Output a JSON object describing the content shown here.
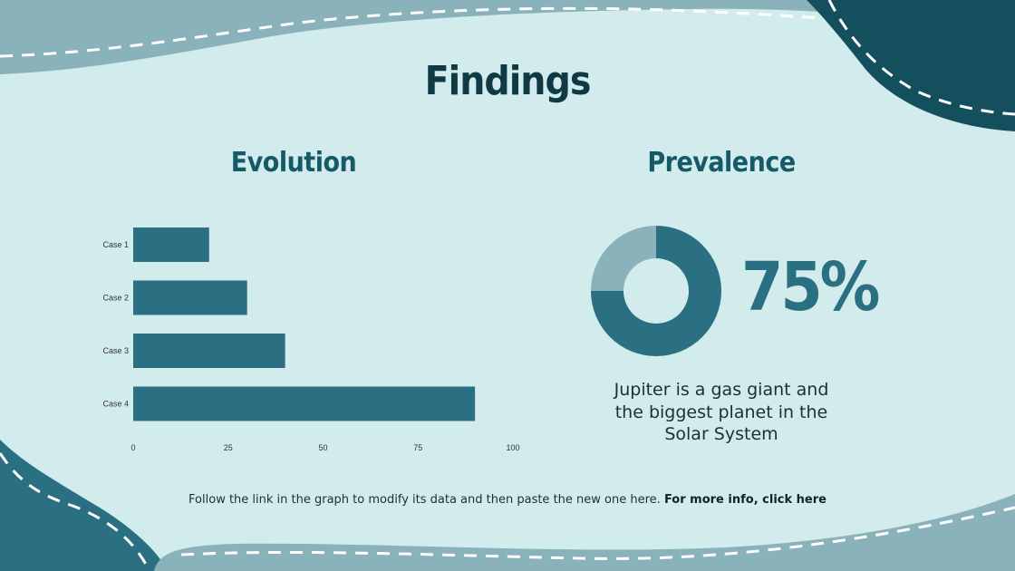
{
  "title": "Findings",
  "evolution": {
    "title": "Evolution"
  },
  "prevalence": {
    "title": "Prevalence",
    "percent_label": "75%",
    "description": "Jupiter is a gas giant and the biggest planet in the Solar System"
  },
  "footer": {
    "text": "Follow the link in the graph to modify its data and then paste the new one here.",
    "link_label": "For more info, click here"
  },
  "colors": {
    "background": "#d2eced",
    "bar": "#2b6f82",
    "donut_main": "#2b6f82",
    "donut_rest": "#8ab2ba",
    "dark_accent": "#134f5c",
    "mid_accent": "#8ab2ba"
  },
  "chart_data": [
    {
      "type": "bar",
      "orientation": "horizontal",
      "title": "Evolution",
      "categories": [
        "Case 1",
        "Case 2",
        "Case 3",
        "Case 4"
      ],
      "values": [
        20,
        30,
        40,
        90
      ],
      "xlim": [
        0,
        100
      ],
      "xticks": [
        "0",
        "25",
        "50",
        "75",
        "100"
      ],
      "grid": false
    },
    {
      "type": "pie",
      "title": "Prevalence",
      "donut": true,
      "values": [
        75,
        25
      ]
    }
  ]
}
